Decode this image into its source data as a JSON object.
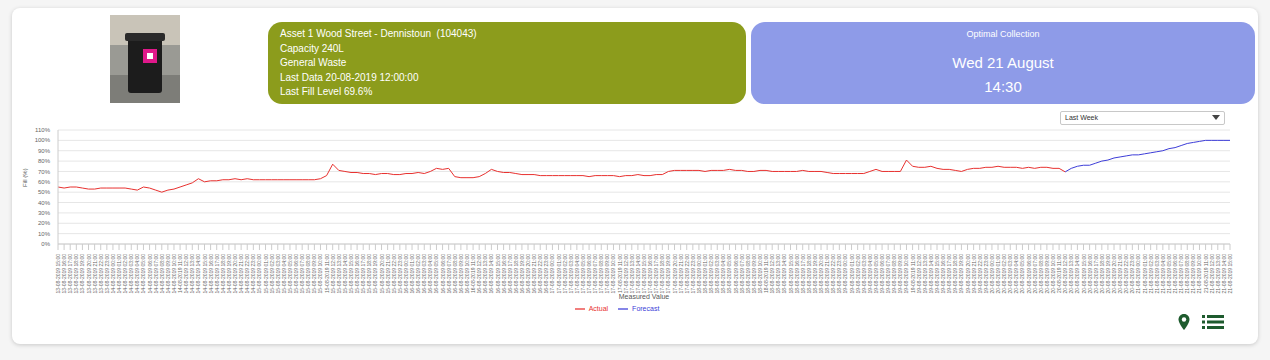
{
  "info_panel": {
    "lines": [
      "Asset 1 Wood Street - Dennistoun  (104043)",
      "Capacity 240L",
      "General Waste",
      "Last Data 20-08-2019 12:00:00",
      "Last Fill Level 69.6%"
    ]
  },
  "collection_panel": {
    "title": "Optimal Collection",
    "date": "Wed 21 August",
    "time": "14:30"
  },
  "period_select": "Last Week",
  "chart_data": {
    "type": "line",
    "x_label": "Measured Value",
    "y_label": "Fill (%)",
    "grid": true,
    "legend": "bottom",
    "ylim": [
      0,
      110
    ],
    "yticks": [
      {
        "value": 0,
        "label": "0%"
      },
      {
        "value": 10,
        "label": "10%"
      },
      {
        "value": 20,
        "label": "20%"
      },
      {
        "value": 30,
        "label": "30%"
      },
      {
        "value": 40,
        "label": "40%"
      },
      {
        "value": 50,
        "label": "50%"
      },
      {
        "value": 60,
        "label": "60%"
      },
      {
        "value": 70,
        "label": "70%"
      },
      {
        "value": 80,
        "label": "80%"
      },
      {
        "value": 90,
        "label": "90%"
      },
      {
        "value": 100,
        "label": "100%"
      },
      {
        "value": 110,
        "label": "110%"
      }
    ],
    "x": [
      "13-08-2019 15:00",
      "13-08-2019 16:00",
      "13-08-2019 17:00",
      "13-08-2019 18:00",
      "13-08-2019 19:00",
      "13-08-2019 20:00",
      "13-08-2019 21:00",
      "13-08-2019 22:00",
      "13-08-2019 23:00",
      "14-08-2019 00:00",
      "14-08-2019 01:00",
      "14-08-2019 02:00",
      "14-08-2019 03:00",
      "14-08-2019 04:00",
      "14-08-2019 05:00",
      "14-08-2019 06:00",
      "14-08-2019 07:00",
      "14-08-2019 08:00",
      "14-08-2019 09:00",
      "14-08-2019 10:00",
      "14-08-2019 11:00",
      "14-08-2019 12:00",
      "14-08-2019 13:00",
      "14-08-2019 14:00",
      "14-08-2019 15:00",
      "14-08-2019 16:00",
      "14-08-2019 17:00",
      "14-08-2019 18:00",
      "14-08-2019 19:00",
      "14-08-2019 20:00",
      "14-08-2019 21:00",
      "14-08-2019 22:00",
      "14-08-2019 23:00",
      "15-08-2019 00:00",
      "15-08-2019 01:00",
      "15-08-2019 02:00",
      "15-08-2019 03:00",
      "15-08-2019 04:00",
      "15-08-2019 05:00",
      "15-08-2019 06:00",
      "15-08-2019 07:00",
      "15-08-2019 08:00",
      "15-08-2019 09:00",
      "15-08-2019 10:00",
      "15-08-2019 11:00",
      "15-08-2019 12:00",
      "15-08-2019 13:00",
      "15-08-2019 14:00",
      "15-08-2019 15:00",
      "15-08-2019 16:00",
      "15-08-2019 17:00",
      "15-08-2019 18:00",
      "15-08-2019 19:00",
      "15-08-2019 20:00",
      "15-08-2019 21:00",
      "15-08-2019 22:00",
      "15-08-2019 23:00",
      "16-08-2019 00:00",
      "16-08-2019 01:00",
      "16-08-2019 02:00",
      "16-08-2019 03:00",
      "16-08-2019 04:00",
      "16-08-2019 05:00",
      "16-08-2019 06:00",
      "16-08-2019 07:00",
      "16-08-2019 08:00",
      "16-08-2019 09:00",
      "16-08-2019 10:00",
      "16-08-2019 11:00",
      "16-08-2019 12:00",
      "16-08-2019 13:00",
      "16-08-2019 14:00",
      "16-08-2019 15:00",
      "16-08-2019 16:00",
      "16-08-2019 17:00",
      "16-08-2019 18:00",
      "16-08-2019 19:00",
      "16-08-2019 20:00",
      "16-08-2019 21:00",
      "16-08-2019 22:00",
      "16-08-2019 23:00",
      "17-08-2019 00:00",
      "17-08-2019 01:00",
      "17-08-2019 02:00",
      "17-08-2019 03:00",
      "17-08-2019 04:00",
      "17-08-2019 05:00",
      "17-08-2019 06:00",
      "17-08-2019 07:00",
      "17-08-2019 08:00",
      "17-08-2019 09:00",
      "17-08-2019 10:00",
      "17-08-2019 11:00",
      "17-08-2019 12:00",
      "17-08-2019 13:00",
      "17-08-2019 14:00",
      "17-08-2019 15:00",
      "17-08-2019 16:00",
      "17-08-2019 17:00",
      "17-08-2019 18:00",
      "17-08-2019 19:00",
      "17-08-2019 20:00",
      "17-08-2019 21:00",
      "17-08-2019 22:00",
      "17-08-2019 23:00",
      "18-08-2019 00:00",
      "18-08-2019 01:00",
      "18-08-2019 02:00",
      "18-08-2019 03:00",
      "18-08-2019 04:00",
      "18-08-2019 05:00",
      "18-08-2019 06:00",
      "18-08-2019 07:00",
      "18-08-2019 08:00",
      "18-08-2019 09:00",
      "18-08-2019 10:00",
      "18-08-2019 11:00",
      "18-08-2019 12:00",
      "18-08-2019 13:00",
      "18-08-2019 14:00",
      "18-08-2019 15:00",
      "18-08-2019 16:00",
      "18-08-2019 17:00",
      "18-08-2019 18:00",
      "18-08-2019 19:00",
      "18-08-2019 20:00",
      "18-08-2019 21:00",
      "18-08-2019 22:00",
      "18-08-2019 23:00",
      "19-08-2019 00:00",
      "19-08-2019 01:00",
      "19-08-2019 02:00",
      "19-08-2019 03:00",
      "19-08-2019 04:00",
      "19-08-2019 05:00",
      "19-08-2019 06:00",
      "19-08-2019 07:00",
      "19-08-2019 08:00",
      "19-08-2019 09:00",
      "19-08-2019 10:00",
      "19-08-2019 11:00",
      "19-08-2019 12:00",
      "19-08-2019 13:00",
      "19-08-2019 14:00",
      "19-08-2019 15:00",
      "19-08-2019 16:00",
      "19-08-2019 17:00",
      "19-08-2019 18:00",
      "19-08-2019 19:00",
      "19-08-2019 20:00",
      "19-08-2019 21:00",
      "19-08-2019 22:00",
      "19-08-2019 23:00",
      "20-08-2019 00:00",
      "20-08-2019 01:00",
      "20-08-2019 02:00",
      "20-08-2019 03:00",
      "20-08-2019 04:00",
      "20-08-2019 05:00",
      "20-08-2019 06:00",
      "20-08-2019 07:00",
      "20-08-2019 08:00",
      "20-08-2019 09:00",
      "20-08-2019 10:00",
      "20-08-2019 11:00",
      "20-08-2019 12:00",
      "20-08-2019 13:00",
      "20-08-2019 14:00",
      "20-08-2019 15:00",
      "20-08-2019 16:00",
      "20-08-2019 17:00",
      "20-08-2019 18:00",
      "20-08-2019 19:00",
      "20-08-2019 20:00",
      "20-08-2019 21:00",
      "20-08-2019 22:00",
      "20-08-2019 23:00",
      "21-08-2019 00:00",
      "21-08-2019 01:00",
      "21-08-2019 02:00",
      "21-08-2019 03:00",
      "21-08-2019 04:00",
      "21-08-2019 05:00",
      "21-08-2019 06:00",
      "21-08-2019 07:00",
      "21-08-2019 08:00",
      "21-08-2019 09:00",
      "21-08-2019 10:00",
      "21-08-2019 11:00",
      "21-08-2019 12:00",
      "21-08-2019 13:00",
      "21-08-2019 14:00",
      "21-08-2019 15:00"
    ],
    "series": [
      {
        "name": "Actual",
        "color": "#e8312f",
        "values": [
          55,
          54,
          55,
          55,
          54,
          53,
          53,
          54,
          54,
          54,
          54,
          54,
          53,
          52,
          55,
          54,
          52,
          50,
          52,
          53,
          55,
          57,
          59,
          63,
          60,
          61,
          61,
          62,
          62,
          63,
          62,
          63,
          62,
          62,
          62,
          62,
          62,
          62,
          62,
          62,
          62,
          62,
          62,
          63,
          66,
          77,
          71,
          70,
          69,
          69,
          68,
          68,
          67,
          68,
          68,
          67,
          67,
          68,
          68,
          69,
          68,
          70,
          73,
          72,
          73,
          65,
          64,
          64,
          64,
          65,
          68,
          72,
          70,
          69,
          69,
          68,
          67,
          67,
          67,
          66,
          66,
          66,
          66,
          66,
          66,
          66,
          66,
          65,
          66,
          66,
          66,
          66,
          65,
          66,
          66,
          67,
          66,
          66,
          67,
          67,
          70,
          71,
          71,
          71,
          71,
          71,
          70,
          71,
          71,
          71,
          72,
          71,
          71,
          70,
          70,
          71,
          71,
          70,
          70,
          70,
          70,
          70,
          71,
          70,
          70,
          70,
          69,
          68,
          68,
          68,
          68,
          68,
          68,
          70,
          72,
          70,
          70,
          70,
          70,
          81,
          75,
          74,
          74,
          75,
          73,
          72,
          72,
          71,
          70,
          72,
          73,
          73,
          74,
          74,
          75,
          74,
          74,
          74,
          73,
          74,
          73,
          74,
          74,
          73,
          73,
          69.6,
          null,
          null,
          null,
          null,
          null,
          null,
          null,
          null,
          null,
          null,
          null,
          null,
          null,
          null,
          null,
          null,
          null,
          null,
          null,
          null,
          null,
          null,
          null,
          null,
          null,
          null,
          null
        ]
      },
      {
        "name": "Forecast",
        "color": "#3d3dd8",
        "values": [
          null,
          null,
          null,
          null,
          null,
          null,
          null,
          null,
          null,
          null,
          null,
          null,
          null,
          null,
          null,
          null,
          null,
          null,
          null,
          null,
          null,
          null,
          null,
          null,
          null,
          null,
          null,
          null,
          null,
          null,
          null,
          null,
          null,
          null,
          null,
          null,
          null,
          null,
          null,
          null,
          null,
          null,
          null,
          null,
          null,
          null,
          null,
          null,
          null,
          null,
          null,
          null,
          null,
          null,
          null,
          null,
          null,
          null,
          null,
          null,
          null,
          null,
          null,
          null,
          null,
          null,
          null,
          null,
          null,
          null,
          null,
          null,
          null,
          null,
          null,
          null,
          null,
          null,
          null,
          null,
          null,
          null,
          null,
          null,
          null,
          null,
          null,
          null,
          null,
          null,
          null,
          null,
          null,
          null,
          null,
          null,
          null,
          null,
          null,
          null,
          null,
          null,
          null,
          null,
          null,
          null,
          null,
          null,
          null,
          null,
          null,
          null,
          null,
          null,
          null,
          null,
          null,
          null,
          null,
          null,
          null,
          null,
          null,
          null,
          null,
          null,
          null,
          null,
          null,
          null,
          null,
          null,
          null,
          null,
          null,
          null,
          null,
          null,
          null,
          null,
          null,
          null,
          null,
          null,
          null,
          null,
          null,
          null,
          null,
          null,
          null,
          null,
          null,
          null,
          null,
          null,
          null,
          null,
          null,
          null,
          null,
          null,
          null,
          null,
          null,
          69.6,
          73,
          75,
          76,
          76,
          78,
          80,
          81,
          83,
          84,
          85,
          86,
          86,
          87,
          88,
          89,
          90,
          92,
          93,
          95,
          97,
          98,
          99,
          100,
          100,
          100,
          100,
          100
        ]
      }
    ]
  }
}
